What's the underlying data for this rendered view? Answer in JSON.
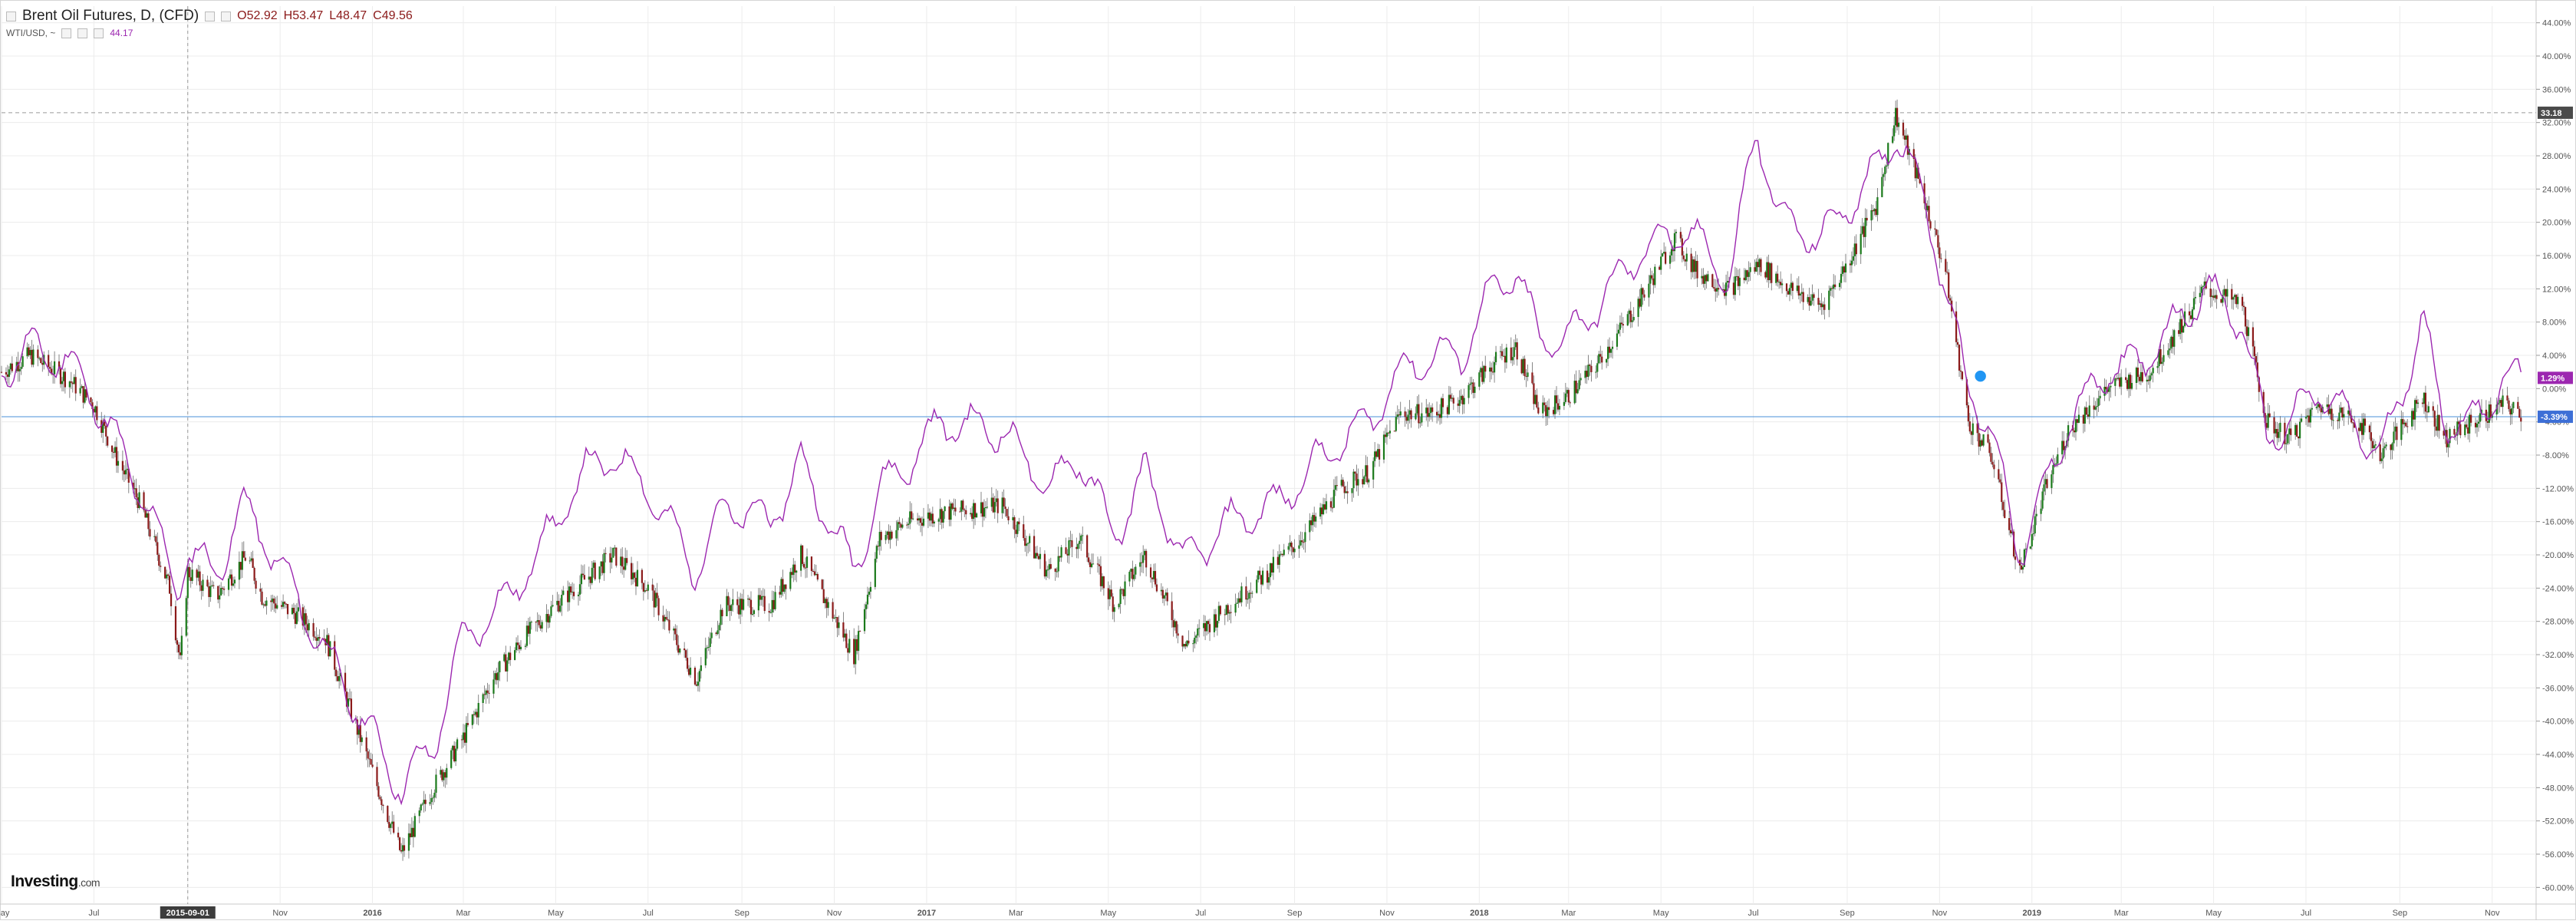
{
  "header": {
    "symbol": "Brent Oil Futures, D, (CFD)",
    "open": "O52.92",
    "high": "H53.47",
    "low": "L48.47",
    "close": "C49.56",
    "compare_symbol": "WTI/USD, ~",
    "compare_value": "44.17"
  },
  "branding": {
    "logo_main": "Investing",
    "logo_suffix": ".com"
  },
  "colors": {
    "candle_up": "#1b7a1b",
    "candle_down": "#8b1a1a",
    "compare_line": "#9c27b0",
    "crosshair": "#4a90d9",
    "grid": "#ececec",
    "axis_text": "#555555"
  },
  "chart_data": {
    "type": "line",
    "title": "Brent Oil Futures, D, (CFD)",
    "xlabel": "",
    "ylabel": "",
    "y_unit": "%",
    "ylim": [
      -62,
      46
    ],
    "y_ticks": [
      "44.00%",
      "40.00%",
      "36.00%",
      "32.00%",
      "28.00%",
      "24.00%",
      "20.00%",
      "16.00%",
      "12.00%",
      "8.00%",
      "4.00%",
      "0.00%",
      "-4.00%",
      "-8.00%",
      "-12.00%",
      "-16.00%",
      "-20.00%",
      "-24.00%",
      "-28.00%",
      "-32.00%",
      "-36.00%",
      "-40.00%",
      "-44.00%",
      "-48.00%",
      "-52.00%",
      "-56.00%",
      "-60.00%"
    ],
    "y_tick_values": [
      44,
      40,
      36,
      32,
      28,
      24,
      20,
      16,
      12,
      8,
      4,
      0,
      -4,
      -8,
      -12,
      -16,
      -20,
      -24,
      -28,
      -32,
      -36,
      -40,
      -44,
      -48,
      -52,
      -56,
      -60
    ],
    "x_start": "2015-05-01",
    "x_end": "2019-11-30",
    "x_ticks": [
      {
        "date": "2015-05-01",
        "label": "May"
      },
      {
        "date": "2015-07-01",
        "label": "Jul"
      },
      {
        "date": "2015-09-01",
        "label": "2015-09-01",
        "highlight": true
      },
      {
        "date": "2015-11-01",
        "label": "Nov"
      },
      {
        "date": "2016-01-01",
        "label": "2016",
        "bold": true
      },
      {
        "date": "2016-03-01",
        "label": "Mar"
      },
      {
        "date": "2016-05-01",
        "label": "May"
      },
      {
        "date": "2016-07-01",
        "label": "Jul"
      },
      {
        "date": "2016-09-01",
        "label": "Sep"
      },
      {
        "date": "2016-11-01",
        "label": "Nov"
      },
      {
        "date": "2017-01-01",
        "label": "2017",
        "bold": true
      },
      {
        "date": "2017-03-01",
        "label": "Mar"
      },
      {
        "date": "2017-05-01",
        "label": "May"
      },
      {
        "date": "2017-07-01",
        "label": "Jul"
      },
      {
        "date": "2017-09-01",
        "label": "Sep"
      },
      {
        "date": "2017-11-01",
        "label": "Nov"
      },
      {
        "date": "2018-01-01",
        "label": "2018",
        "bold": true
      },
      {
        "date": "2018-03-01",
        "label": "Mar"
      },
      {
        "date": "2018-05-01",
        "label": "May"
      },
      {
        "date": "2018-07-01",
        "label": "Jul"
      },
      {
        "date": "2018-09-01",
        "label": "Sep"
      },
      {
        "date": "2018-11-01",
        "label": "Nov"
      },
      {
        "date": "2019-01-01",
        "label": "2019",
        "bold": true
      },
      {
        "date": "2019-03-01",
        "label": "Mar"
      },
      {
        "date": "2019-05-01",
        "label": "May"
      },
      {
        "date": "2019-07-01",
        "label": "Jul"
      },
      {
        "date": "2019-09-01",
        "label": "Sep"
      },
      {
        "date": "2019-11-01",
        "label": "Nov"
      }
    ],
    "series": [
      {
        "name": "Brent Oil Futures, D, (CFD)",
        "style": "candles",
        "points": [
          [
            "2015-05-01",
            2
          ],
          [
            "2015-05-20",
            4
          ],
          [
            "2015-06-15",
            1
          ],
          [
            "2015-07-01",
            -2
          ],
          [
            "2015-07-15",
            -8
          ],
          [
            "2015-08-01",
            -14
          ],
          [
            "2015-08-20",
            -24
          ],
          [
            "2015-08-27",
            -33
          ],
          [
            "2015-09-01",
            -22
          ],
          [
            "2015-09-20",
            -25
          ],
          [
            "2015-10-10",
            -20
          ],
          [
            "2015-10-20",
            -25
          ],
          [
            "2015-11-10",
            -27
          ],
          [
            "2015-12-01",
            -30
          ],
          [
            "2015-12-20",
            -40
          ],
          [
            "2016-01-20",
            -56
          ],
          [
            "2016-02-10",
            -48
          ],
          [
            "2016-03-01",
            -42
          ],
          [
            "2016-03-20",
            -35
          ],
          [
            "2016-04-10",
            -30
          ],
          [
            "2016-05-01",
            -26
          ],
          [
            "2016-06-08",
            -20
          ],
          [
            "2016-07-01",
            -24
          ],
          [
            "2016-08-02",
            -35
          ],
          [
            "2016-08-20",
            -26
          ],
          [
            "2016-09-20",
            -26
          ],
          [
            "2016-10-10",
            -20
          ],
          [
            "2016-11-14",
            -32
          ],
          [
            "2016-12-01",
            -18
          ],
          [
            "2016-12-20",
            -16
          ],
          [
            "2017-01-10",
            -15
          ],
          [
            "2017-02-20",
            -14
          ],
          [
            "2017-03-22",
            -22
          ],
          [
            "2017-04-12",
            -18
          ],
          [
            "2017-05-05",
            -26
          ],
          [
            "2017-05-25",
            -20
          ],
          [
            "2017-06-21",
            -31
          ],
          [
            "2017-07-20",
            -26
          ],
          [
            "2017-08-15",
            -22
          ],
          [
            "2017-09-10",
            -17
          ],
          [
            "2017-10-01",
            -12
          ],
          [
            "2017-10-20",
            -10
          ],
          [
            "2017-11-10",
            -3
          ],
          [
            "2017-12-01",
            -3
          ],
          [
            "2017-12-20",
            -1
          ],
          [
            "2018-01-10",
            3
          ],
          [
            "2018-01-25",
            5
          ],
          [
            "2018-02-10",
            -3
          ],
          [
            "2018-02-28",
            -1
          ],
          [
            "2018-03-20",
            3
          ],
          [
            "2018-04-15",
            10
          ],
          [
            "2018-05-10",
            18
          ],
          [
            "2018-05-25",
            14
          ],
          [
            "2018-06-15",
            12
          ],
          [
            "2018-07-05",
            15
          ],
          [
            "2018-07-25",
            12
          ],
          [
            "2018-08-15",
            10
          ],
          [
            "2018-09-01",
            15
          ],
          [
            "2018-09-20",
            22
          ],
          [
            "2018-10-03",
            33
          ],
          [
            "2018-10-20",
            24
          ],
          [
            "2018-11-05",
            14
          ],
          [
            "2018-11-20",
            -4
          ],
          [
            "2018-12-05",
            -8
          ],
          [
            "2018-12-24",
            -22
          ],
          [
            "2019-01-10",
            -12
          ],
          [
            "2019-01-25",
            -5
          ],
          [
            "2019-02-20",
            0
          ],
          [
            "2019-03-20",
            2
          ],
          [
            "2019-04-25",
            12
          ],
          [
            "2019-05-20",
            10
          ],
          [
            "2019-06-05",
            -4
          ],
          [
            "2019-06-20",
            -6
          ],
          [
            "2019-07-10",
            -2
          ],
          [
            "2019-08-05",
            -4
          ],
          [
            "2019-08-20",
            -8
          ],
          [
            "2019-09-16",
            -1
          ],
          [
            "2019-10-01",
            -6
          ],
          [
            "2019-10-20",
            -4
          ],
          [
            "2019-11-08",
            -2
          ],
          [
            "2019-11-20",
            -3
          ]
        ]
      },
      {
        "name": "WTI/USD",
        "style": "line",
        "points": [
          [
            "2015-05-01",
            2
          ],
          [
            "2015-05-20",
            5
          ],
          [
            "2015-06-15",
            3
          ],
          [
            "2015-07-01",
            -1
          ],
          [
            "2015-07-20",
            -8
          ],
          [
            "2015-08-10",
            -16
          ],
          [
            "2015-08-24",
            -24
          ],
          [
            "2015-09-01",
            -20
          ],
          [
            "2015-09-20",
            -22
          ],
          [
            "2015-10-08",
            -14
          ],
          [
            "2015-10-25",
            -19
          ],
          [
            "2015-11-20",
            -28
          ],
          [
            "2015-12-20",
            -38
          ],
          [
            "2016-01-20",
            -48
          ],
          [
            "2016-02-10",
            -43
          ],
          [
            "2016-03-01",
            -30
          ],
          [
            "2016-04-01",
            -25
          ],
          [
            "2016-04-25",
            -18
          ],
          [
            "2016-05-20",
            -10
          ],
          [
            "2016-06-08",
            -8
          ],
          [
            "2016-07-01",
            -12
          ],
          [
            "2016-08-02",
            -22
          ],
          [
            "2016-08-20",
            -14
          ],
          [
            "2016-09-20",
            -16
          ],
          [
            "2016-10-10",
            -9
          ],
          [
            "2016-11-14",
            -22
          ],
          [
            "2016-12-01",
            -12
          ],
          [
            "2016-12-20",
            -9
          ],
          [
            "2017-01-10",
            -4
          ],
          [
            "2017-02-20",
            -5
          ],
          [
            "2017-03-22",
            -12
          ],
          [
            "2017-04-12",
            -8
          ],
          [
            "2017-05-05",
            -18
          ],
          [
            "2017-05-25",
            -10
          ],
          [
            "2017-06-21",
            -21
          ],
          [
            "2017-07-20",
            -16
          ],
          [
            "2017-08-20",
            -14
          ],
          [
            "2017-09-20",
            -8
          ],
          [
            "2017-10-20",
            -4
          ],
          [
            "2017-11-10",
            2
          ],
          [
            "2017-12-01",
            4
          ],
          [
            "2017-12-20",
            4
          ],
          [
            "2018-01-10",
            12
          ],
          [
            "2018-01-25",
            14
          ],
          [
            "2018-02-10",
            6
          ],
          [
            "2018-02-28",
            6
          ],
          [
            "2018-03-20",
            10
          ],
          [
            "2018-04-20",
            17
          ],
          [
            "2018-05-20",
            19
          ],
          [
            "2018-06-15",
            13
          ],
          [
            "2018-07-03",
            31
          ],
          [
            "2018-07-20",
            20
          ],
          [
            "2018-08-15",
            18
          ],
          [
            "2018-09-01",
            22
          ],
          [
            "2018-09-20",
            26
          ],
          [
            "2018-10-03",
            31
          ],
          [
            "2018-10-20",
            24
          ],
          [
            "2018-11-05",
            12
          ],
          [
            "2018-11-20",
            0
          ],
          [
            "2018-12-05",
            -5
          ],
          [
            "2018-12-24",
            -20
          ],
          [
            "2019-01-10",
            -12
          ],
          [
            "2019-01-25",
            -4
          ],
          [
            "2019-02-20",
            2
          ],
          [
            "2019-03-20",
            4
          ],
          [
            "2019-04-25",
            12
          ],
          [
            "2019-05-20",
            8
          ],
          [
            "2019-06-05",
            -6
          ],
          [
            "2019-06-20",
            -4
          ],
          [
            "2019-07-10",
            0
          ],
          [
            "2019-08-05",
            -5
          ],
          [
            "2019-08-20",
            -8
          ],
          [
            "2019-09-16",
            8
          ],
          [
            "2019-10-01",
            -4
          ],
          [
            "2019-10-20",
            -4
          ],
          [
            "2019-11-08",
            1
          ],
          [
            "2019-11-20",
            1
          ]
        ]
      }
    ],
    "price_labels": [
      {
        "label": "33.18",
        "value": 33.18,
        "color": "#4a4a4a"
      },
      {
        "label": "1.29%",
        "value": 1.29,
        "color": "#9c27b0"
      },
      {
        "label": "-3.39%",
        "value": -3.39,
        "color": "#3d6fd6"
      }
    ],
    "horizontal_crosshair_value": -3.39,
    "vertical_crosshair_date": "2015-09-01",
    "dashed_reference_value": 33.18,
    "marker": {
      "date": "2018-11-28",
      "value": 1.5,
      "icon": "flag-icon"
    },
    "grid": true,
    "legend": "top-left"
  }
}
